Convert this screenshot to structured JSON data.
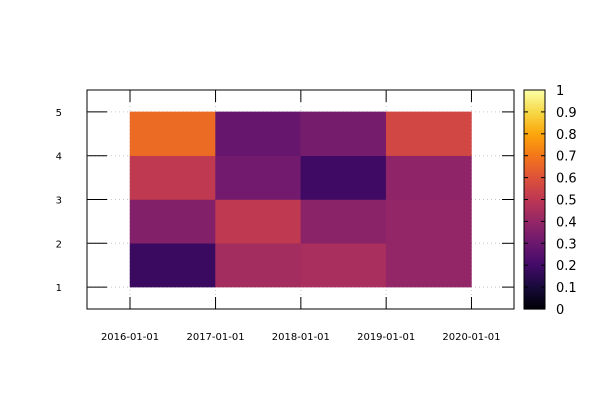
{
  "chart_data": {
    "type": "heatmap",
    "title": "",
    "xlabel": "",
    "ylabel": "",
    "x_ticks": [
      "2016-01-01",
      "2017-01-01",
      "2018-01-01",
      "2019-01-01",
      "2020-01-01"
    ],
    "y_ticks": [
      "1",
      "2",
      "3",
      "4",
      "5"
    ],
    "x_intervals": [
      [
        "2016-01-01",
        "2017-01-01"
      ],
      [
        "2017-01-01",
        "2018-01-01"
      ],
      [
        "2018-01-01",
        "2019-01-01"
      ],
      [
        "2019-01-01",
        "2020-01-01"
      ]
    ],
    "y_intervals": [
      [
        1,
        2
      ],
      [
        2,
        3
      ],
      [
        3,
        4
      ],
      [
        4,
        5
      ]
    ],
    "z": [
      [
        0.18,
        0.44,
        0.45,
        0.4
      ],
      [
        0.36,
        0.51,
        0.38,
        0.4
      ],
      [
        0.51,
        0.32,
        0.19,
        0.39
      ],
      [
        0.67,
        0.29,
        0.33,
        0.56
      ]
    ],
    "colormap": "inferno",
    "colorbar": {
      "range": [
        0,
        1
      ],
      "ticks": [
        "0",
        "0.1",
        "0.2",
        "0.3",
        "0.4",
        "0.5",
        "0.6",
        "0.7",
        "0.8",
        "0.9",
        "1"
      ]
    },
    "xlim": [
      "2015-07-01",
      "2020-07-01"
    ],
    "ylim": [
      0.5,
      5.5
    ],
    "grid": true,
    "legend": "colorbar-right"
  }
}
